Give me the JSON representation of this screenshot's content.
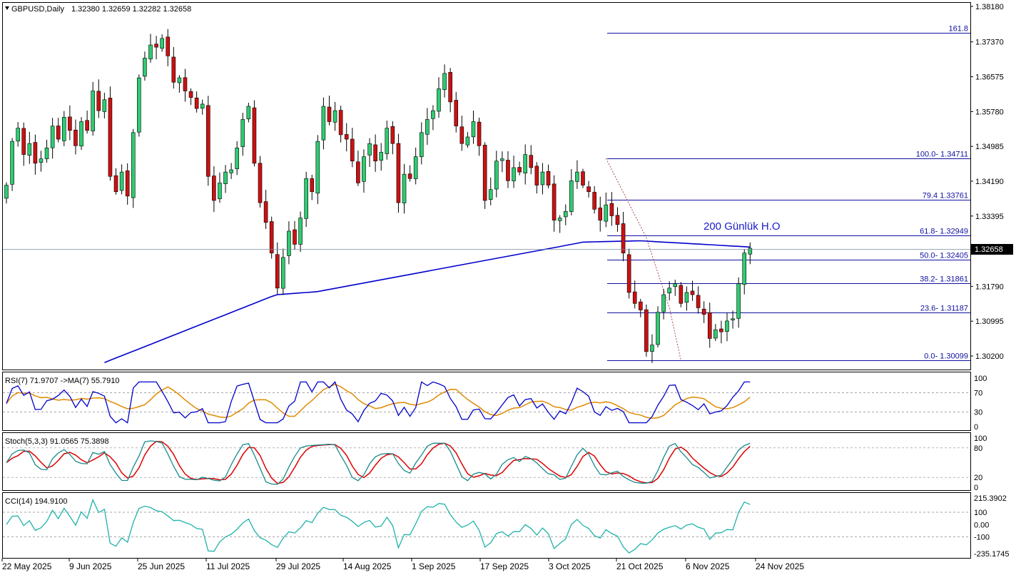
{
  "header": {
    "symbol": "GBPUSD,Daily",
    "ohlc": "1.32380 1.32659 1.32282 1.32658"
  },
  "colors": {
    "bull": "#2ecc71",
    "bear": "#cc1111",
    "ma200": "#0000cc",
    "fib": "#1010a0",
    "rsi": "#0000cc",
    "rsi_ma": "#e08a00",
    "stoch_main": "#1a8a8a",
    "stoch_signal": "#dd0000",
    "cci": "#20b2aa",
    "price_tag": "#000000"
  },
  "chart_data": [
    {
      "type": "candlestick",
      "symbol": "GBPUSD",
      "timeframe": "Daily",
      "price_axis": {
        "ticks": [
          "1.38180",
          "1.37370",
          "1.36575",
          "1.35780",
          "1.34985",
          "1.34190",
          "1.33395",
          "1.32600",
          "1.31790",
          "1.30995",
          "1.30200"
        ],
        "ylim": [
          1.299,
          1.3822
        ]
      },
      "x_labels": [
        "22 May 2025",
        "9 Jun 2025",
        "25 Jun 2025",
        "11 Jul 2025",
        "29 Jul 2025",
        "14 Aug 2025",
        "1 Sep 2025",
        "17 Sep 2025",
        "3 Oct 2025",
        "21 Oct 2025",
        "6 Nov 2025",
        "24 Nov 2025"
      ],
      "current_price": "1.32658",
      "annotation": "200 Günlük H.O",
      "fibonacci": [
        {
          "label": "161.8",
          "price": 1.3757
        },
        {
          "label": "100.0- 1.34711",
          "price": 1.34711
        },
        {
          "label": "79.4 1.33761",
          "price": 1.33761
        },
        {
          "label": "61.8- 1.32949",
          "price": 1.32949
        },
        {
          "label": "50.0- 1.32405",
          "price": 1.32405
        },
        {
          "label": "38.2- 1.31861",
          "price": 1.31861
        },
        {
          "label": "23.6- 1.31187",
          "price": 1.31187
        },
        {
          "label": "0.0- 1.30099",
          "price": 1.30099
        }
      ],
      "closes": [
        1.341,
        1.351,
        1.354,
        1.348,
        1.3505,
        1.346,
        1.347,
        1.3495,
        1.3545,
        1.3515,
        1.3565,
        1.3535,
        1.35,
        1.3555,
        1.3535,
        1.3625,
        1.358,
        1.3605,
        1.343,
        1.3395,
        1.344,
        1.3385,
        1.353,
        1.3655,
        1.37,
        1.373,
        1.3725,
        1.3745,
        1.3705,
        1.3645,
        1.3655,
        1.3625,
        1.361,
        1.3585,
        1.3595,
        1.343,
        1.3375,
        1.3415,
        1.344,
        1.3445,
        1.3495,
        1.356,
        1.359,
        1.346,
        1.337,
        1.3325,
        1.3255,
        1.3175,
        1.3245,
        1.3305,
        1.3275,
        1.3335,
        1.3425,
        1.3395,
        1.351,
        1.359,
        1.3555,
        1.358,
        1.3525,
        1.3515,
        1.3465,
        1.3415,
        1.3475,
        1.3505,
        1.3465,
        1.3485,
        1.354,
        1.3505,
        1.337,
        1.3435,
        1.3425,
        1.3475,
        1.353,
        1.356,
        1.358,
        1.363,
        1.3665,
        1.36,
        1.3545,
        1.3505,
        1.352,
        1.3555,
        1.35,
        1.3375,
        1.34,
        1.3465,
        1.347,
        1.342,
        1.345,
        1.344,
        1.348,
        1.345,
        1.341,
        1.344,
        1.341,
        1.333,
        1.3335,
        1.335,
        1.342,
        1.344,
        1.341,
        1.3395,
        1.3355,
        1.333,
        1.3365,
        1.334,
        1.332,
        1.3255,
        1.3165,
        1.314,
        1.3125,
        1.303,
        1.3045,
        1.312,
        1.316,
        1.3175,
        1.3185,
        1.314,
        1.3165,
        1.316,
        1.313,
        1.3115,
        1.306,
        1.308,
        1.3075,
        1.31,
        1.3105,
        1.3185,
        1.3255,
        1.3266
      ]
    },
    {
      "type": "line",
      "name": "RSI(7)",
      "header": "RSI(7) 71.9707  ->MA(7) 55.7910",
      "levels": [
        70,
        30
      ],
      "ylim": [
        0,
        100
      ],
      "axis_ticks": [
        "100",
        "70",
        "30",
        "0"
      ]
    },
    {
      "type": "line",
      "name": "Stoch(5,3,3)",
      "header": "Stoch(5,3,3) 91.0565 75.3898",
      "levels": [
        80,
        20
      ],
      "ylim": [
        0,
        100
      ],
      "axis_ticks": [
        "100",
        "80",
        "20",
        "0"
      ]
    },
    {
      "type": "line",
      "name": "CCI(14)",
      "header": "CCI(14) 194.9100",
      "levels": [
        100,
        -100
      ],
      "ylim": [
        -235.1745,
        215.3902
      ],
      "axis_ticks": [
        "215.3902",
        "100",
        "0.00",
        "-100",
        "-235.1745"
      ]
    }
  ]
}
